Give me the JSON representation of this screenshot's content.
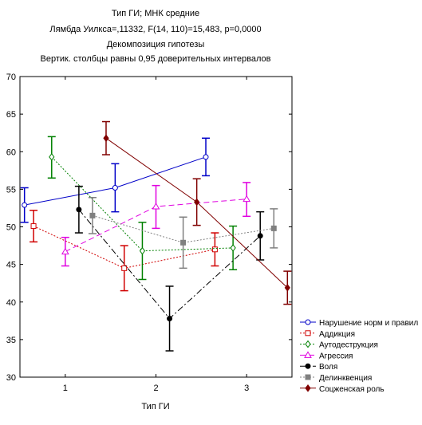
{
  "chart_data": {
    "type": "line",
    "title_lines": [
      "Тип ГИ; МНК средние",
      "Лямбда Уилкса=,11332, F(14, 110)=15,483, p=0,0000",
      "Декомпозиция гипотезы",
      "Вертик. столбцы равны 0,95 доверительных интервалов"
    ],
    "xlabel": "Тип ГИ",
    "ylabel": "",
    "xlim": [
      0.5,
      3.5
    ],
    "ylim": [
      30,
      70
    ],
    "x_ticks": [
      1,
      2,
      3
    ],
    "y_ticks": [
      30,
      35,
      40,
      45,
      50,
      55,
      60,
      65,
      70
    ],
    "grid": false,
    "legend_position": "bottom-right",
    "series": [
      {
        "name": "Нарушение норм и правил",
        "color": "#0000c8",
        "dash": "solid",
        "marker": "circle-open",
        "x": [
          0.55,
          1.55,
          2.55
        ],
        "y": [
          52.9,
          55.2,
          59.3
        ],
        "lo": [
          50.6,
          52.0,
          56.8
        ],
        "hi": [
          55.2,
          58.4,
          61.8
        ]
      },
      {
        "name": "Аддикция",
        "color": "#d00000",
        "dash": "dotted",
        "marker": "square-open",
        "x": [
          0.65,
          1.65,
          2.65
        ],
        "y": [
          50.1,
          44.5,
          47.0
        ],
        "lo": [
          48.0,
          41.5,
          44.8
        ],
        "hi": [
          52.2,
          47.5,
          49.2
        ]
      },
      {
        "name": "Аутодеструкция",
        "color": "#008000",
        "dash": "dotted",
        "marker": "diamond-open",
        "x": [
          0.85,
          1.85,
          2.85
        ],
        "y": [
          59.3,
          46.8,
          47.2
        ],
        "lo": [
          56.5,
          43.0,
          44.3
        ],
        "hi": [
          62.0,
          50.6,
          50.1
        ]
      },
      {
        "name": "Агрессия",
        "color": "#e000e0",
        "dash": "dashed",
        "marker": "triangle-open",
        "x": [
          1.0,
          2.0,
          3.0
        ],
        "y": [
          46.7,
          52.7,
          53.7
        ],
        "lo": [
          44.8,
          49.8,
          51.4
        ],
        "hi": [
          48.6,
          55.5,
          55.9
        ]
      },
      {
        "name": "Воля",
        "color": "#000000",
        "dash": "dashdot",
        "marker": "circle-filled",
        "x": [
          1.15,
          2.15,
          3.15
        ],
        "y": [
          52.3,
          37.8,
          48.8
        ],
        "lo": [
          49.2,
          33.5,
          45.6
        ],
        "hi": [
          55.4,
          42.1,
          52.0
        ]
      },
      {
        "name": "Делинквенция",
        "color": "#808080",
        "dash": "dotted",
        "marker": "square-filled",
        "x": [
          1.3,
          2.3,
          3.3
        ],
        "y": [
          51.5,
          47.9,
          49.8
        ],
        "lo": [
          49.1,
          44.5,
          47.2
        ],
        "hi": [
          53.9,
          51.3,
          52.4
        ]
      },
      {
        "name": "Соцженская роль",
        "color": "#800000",
        "dash": "solid",
        "marker": "diamond-filled",
        "x": [
          1.45,
          2.45,
          3.45
        ],
        "y": [
          61.8,
          53.3,
          41.9
        ],
        "lo": [
          59.6,
          50.2,
          39.7
        ],
        "hi": [
          64.0,
          56.4,
          44.1
        ]
      }
    ]
  }
}
